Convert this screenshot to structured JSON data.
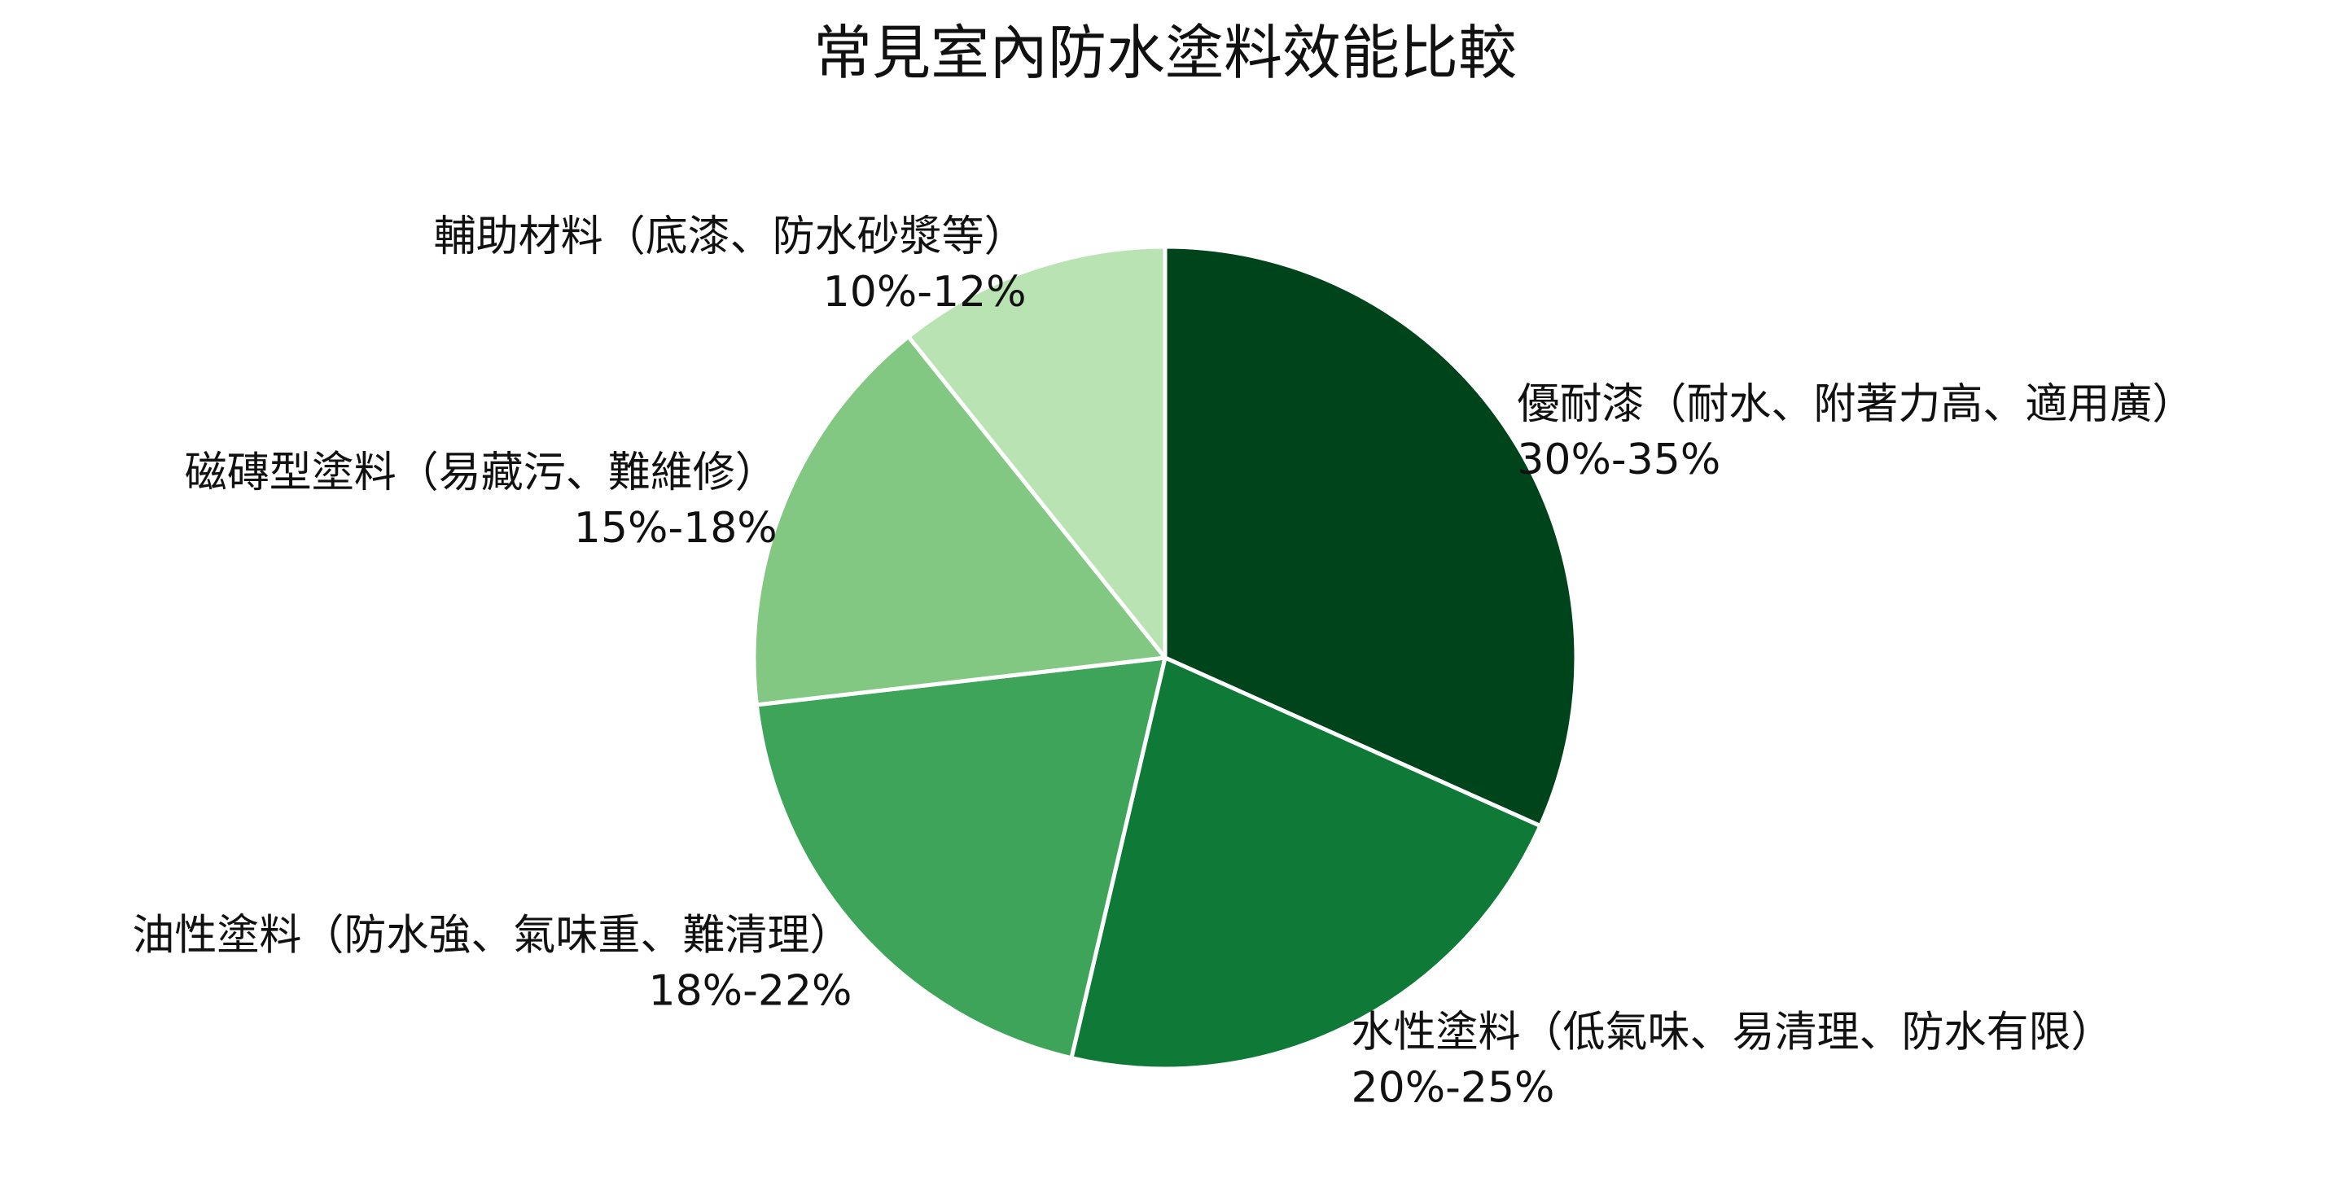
{
  "chart_data": {
    "type": "pie",
    "title": "常見室內防水塗料效能比較",
    "slices": [
      {
        "name": "優耐漆（耐水、附著力高、適用廣）",
        "value_label": "30%-35%",
        "value": 32.5,
        "color": "#00441b"
      },
      {
        "name": "水性塗料（低氣味、易清理、防水有限）",
        "value_label": "20%-25%",
        "value": 22.5,
        "color": "#0f7a37"
      },
      {
        "name": "油性塗料（防水強、氣味重、難清理）",
        "value_label": "18%-22%",
        "value": 20,
        "color": "#3da45a"
      },
      {
        "name": "磁磚型塗料（易藏污、難維修）",
        "value_label": "15%-18%",
        "value": 16.5,
        "color": "#82c883"
      },
      {
        "name": "輔助材料（底漆、防水砂漿等）",
        "value_label": "10%-12%",
        "value": 11,
        "color": "#b9e3b3"
      }
    ],
    "start_angle_deg": 90,
    "direction": "clockwise",
    "legend": "none",
    "edge_color": "#ffffff"
  }
}
